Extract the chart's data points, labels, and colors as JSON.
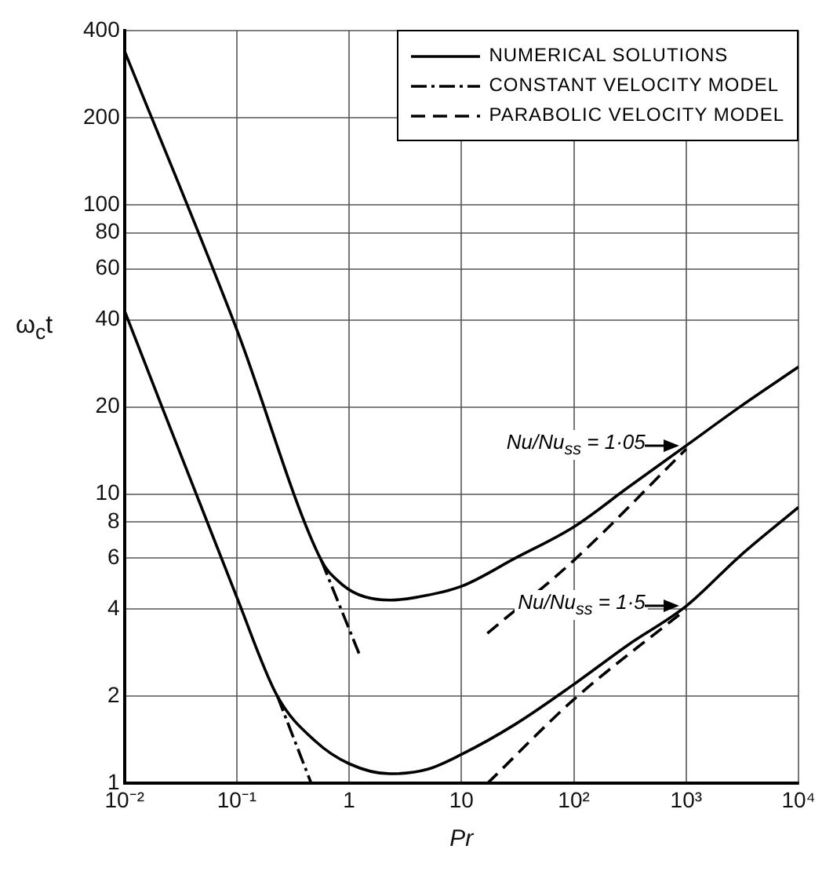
{
  "chart_data": {
    "type": "line",
    "xlabel": "Pr",
    "ylabel": "ω$_{c}$t",
    "log": "xy",
    "grid": true,
    "legend": "top right",
    "marker": "none",
    "xlim": [
      0.01,
      10000
    ],
    "xticks": [
      {
        "value": 0.01,
        "label": "10⁻²"
      },
      {
        "value": 0.1,
        "label": "10⁻¹"
      },
      1,
      10,
      {
        "value": 100,
        "label": "10²"
      },
      {
        "value": 1000,
        "label": "10³"
      },
      {
        "value": 10000,
        "label": "10⁴"
      }
    ],
    "ylim": [
      1,
      400
    ],
    "yticks": [
      1,
      2,
      4,
      6,
      8,
      10,
      20,
      40,
      60,
      80,
      100,
      200,
      400
    ],
    "series": [
      {
        "name": "NUMERICAL SOLUTIONS",
        "color": "#000000",
        "line_style": "solid",
        "x": [
          0.01,
          0.1,
          0.565,
          0.8,
          1.2,
          2.3,
          4,
          10,
          30,
          100,
          300,
          1000,
          3000,
          10000
        ],
        "values": [
          340,
          37,
          5.9,
          5.0,
          4.5,
          4.3,
          4.4,
          4.8,
          6.0,
          7.7,
          10.5,
          14.7,
          20,
          27.5
        ]
      },
      {
        "color": "#000000",
        "line_style": "solid",
        "x": [
          0.01,
          0.1,
          0.23,
          0.5,
          1,
          2.3,
          5,
          10,
          30,
          100,
          300,
          1000,
          3000,
          10000
        ],
        "values": [
          43,
          4.4,
          2.0,
          1.4,
          1.17,
          1.08,
          1.12,
          1.26,
          1.6,
          2.2,
          3.0,
          4.1,
          6.1,
          9.0
        ]
      },
      {
        "name": "CONSTANT VELOCITY MODEL",
        "color": "#000000",
        "line_style": "dashdot",
        "x": [
          0.565,
          1.23
        ],
        "values": [
          5.9,
          2.8
        ]
      },
      {
        "color": "#000000",
        "line_style": "dashdot",
        "x": [
          0.23,
          0.46
        ],
        "values": [
          2.0,
          1.0
        ]
      },
      {
        "name": "PARABOLIC VELOCITY MODEL",
        "color": "#000000",
        "line_style": "dashed",
        "x": [
          17,
          100,
          1000
        ],
        "values": [
          3.3,
          5.9,
          14.3
        ]
      },
      {
        "color": "#000000",
        "line_style": "dashed",
        "x": [
          17,
          100,
          1000
        ],
        "values": [
          1.0,
          1.95,
          4.0
        ]
      }
    ],
    "annotations": [
      {
        "text": "Nu/Nu$_{ss}$ = 1·05",
        "x": 1000,
        "y": 14.7
      },
      {
        "text": "Nu/Nu$_{ss}$ = 1·5",
        "x": 1000,
        "y": 4.1
      }
    ]
  }
}
